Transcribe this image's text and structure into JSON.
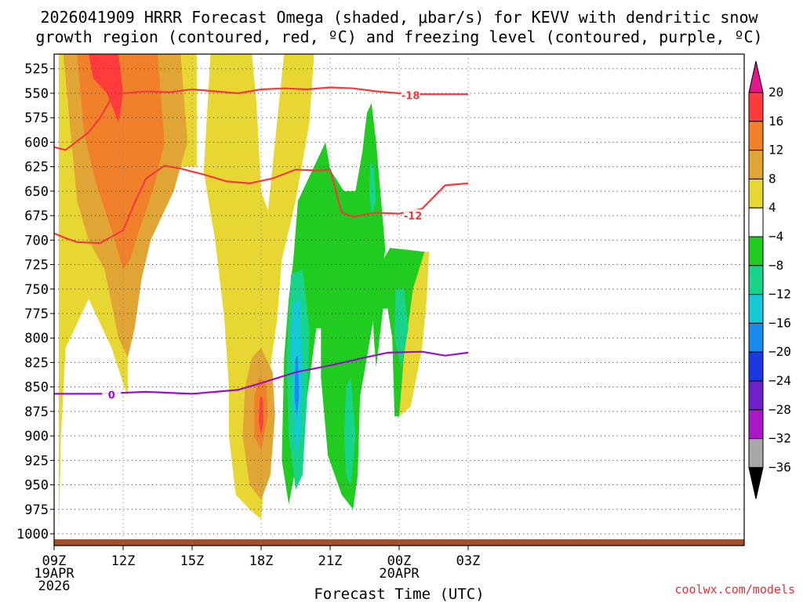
{
  "chart_data": {
    "type": "heatmap",
    "title_line1": "2026041909 HRRR Forecast Omega (shaded, μbar/s) for KEVV with dendritic snow",
    "title_line2": "growth region (contoured, red, ºC) and freezing level (contoured, purple, ºC)",
    "xlabel": "Forecast Time (UTC)",
    "credit": "coolwx.com/models",
    "x_range_hours": [
      0,
      30
    ],
    "y_range_mb": [
      1012,
      510
    ],
    "y_ticks": [
      525,
      550,
      575,
      600,
      625,
      650,
      675,
      700,
      725,
      750,
      775,
      800,
      825,
      850,
      875,
      900,
      925,
      950,
      975,
      1000
    ],
    "x_ticks": [
      {
        "hour": 0,
        "label": "09Z",
        "sub1": "19APR",
        "sub2": "2026"
      },
      {
        "hour": 3,
        "label": "12Z",
        "sub1": "",
        "sub2": ""
      },
      {
        "hour": 6,
        "label": "15Z",
        "sub1": "",
        "sub2": ""
      },
      {
        "hour": 9,
        "label": "18Z",
        "sub1": "",
        "sub2": ""
      },
      {
        "hour": 12,
        "label": "21Z",
        "sub1": "",
        "sub2": ""
      },
      {
        "hour": 15,
        "label": "00Z",
        "sub1": "20APR",
        "sub2": ""
      },
      {
        "hour": 18,
        "label": "03Z",
        "sub1": "",
        "sub2": ""
      }
    ],
    "colorbar": {
      "levels": [
        "20",
        "16",
        "12",
        "8",
        "4",
        "−4",
        "−8",
        "−12",
        "−16",
        "−20",
        "−24",
        "−28",
        "−32",
        "−36"
      ],
      "bands": [
        {
          "color": "#ff3b3b"
        },
        {
          "color": "#f0802a"
        },
        {
          "color": "#e0a534"
        },
        {
          "color": "#e8d733"
        },
        {
          "color": "#ffffff"
        },
        {
          "color": "#1fcc1f"
        },
        {
          "color": "#18d48a"
        },
        {
          "color": "#16c8d8"
        },
        {
          "color": "#1a8cf0"
        },
        {
          "color": "#1c38e0"
        },
        {
          "color": "#7020c8"
        },
        {
          "color": "#a818c8"
        },
        {
          "color": "#a8a8a8"
        }
      ],
      "top_arrow_color": "#e0188c",
      "bottom_arrow_color": "#000000"
    },
    "omega_regions": [
      {
        "name": "yellow-west",
        "value": 4,
        "color": "#e8d733",
        "pts": [
          [
            0.2,
            1000
          ],
          [
            0.2,
            510
          ],
          [
            6.2,
            510
          ],
          [
            6.2,
            625
          ],
          [
            3.5,
            625
          ],
          [
            3.2,
            700
          ],
          [
            3.2,
            860
          ],
          [
            2.5,
            810
          ],
          [
            1.5,
            760
          ],
          [
            0.5,
            810
          ],
          [
            0.3,
            900
          ]
        ]
      },
      {
        "name": "yellow-mid",
        "value": 4,
        "color": "#e8d733",
        "pts": [
          [
            6.8,
            510
          ],
          [
            8.6,
            510
          ],
          [
            8.8,
            560
          ],
          [
            9.0,
            650
          ],
          [
            9.3,
            670
          ],
          [
            9.6,
            600
          ],
          [
            10.0,
            510
          ],
          [
            11.3,
            510
          ],
          [
            11.1,
            580
          ],
          [
            10.5,
            660
          ],
          [
            9.9,
            720
          ],
          [
            9.7,
            780
          ],
          [
            9.4,
            830
          ],
          [
            9.2,
            930
          ],
          [
            9.0,
            985
          ],
          [
            8.5,
            975
          ],
          [
            7.9,
            960
          ],
          [
            7.6,
            900
          ],
          [
            7.6,
            850
          ],
          [
            7.4,
            780
          ],
          [
            7.0,
            700
          ],
          [
            6.5,
            630
          ]
        ]
      },
      {
        "name": "yellow-east",
        "value": 4,
        "color": "#e8d733",
        "pts": [
          [
            15.0,
            712
          ],
          [
            16.3,
            712
          ],
          [
            16.2,
            760
          ],
          [
            16.0,
            810
          ],
          [
            15.5,
            870
          ],
          [
            15.0,
            880
          ]
        ]
      },
      {
        "name": "orange-light",
        "value": 8,
        "color": "#e0a534",
        "pts": [
          [
            0.4,
            510
          ],
          [
            5.5,
            510
          ],
          [
            5.8,
            600
          ],
          [
            5.2,
            650
          ],
          [
            4.2,
            700
          ],
          [
            3.8,
            740
          ],
          [
            3.5,
            790
          ],
          [
            3.2,
            820
          ],
          [
            2.8,
            800
          ],
          [
            2.2,
            730
          ],
          [
            1.5,
            700
          ],
          [
            1.0,
            660
          ],
          [
            0.6,
            560
          ]
        ]
      },
      {
        "name": "orange-light-south",
        "value": 8,
        "color": "#e0a534",
        "pts": [
          [
            8.6,
            820
          ],
          [
            9.0,
            810
          ],
          [
            9.5,
            835
          ],
          [
            9.6,
            880
          ],
          [
            9.4,
            940
          ],
          [
            9.0,
            965
          ],
          [
            8.5,
            950
          ],
          [
            8.2,
            900
          ],
          [
            8.3,
            850
          ]
        ]
      },
      {
        "name": "orange",
        "value": 12,
        "color": "#f0802a",
        "pts": [
          [
            1.0,
            510
          ],
          [
            4.5,
            510
          ],
          [
            4.8,
            600
          ],
          [
            4.4,
            640
          ],
          [
            4.0,
            670
          ],
          [
            3.7,
            690
          ],
          [
            3.3,
            720
          ],
          [
            3.0,
            730
          ],
          [
            2.5,
            690
          ],
          [
            1.8,
            640
          ],
          [
            1.3,
            590
          ]
        ]
      },
      {
        "name": "orange-south",
        "value": 12,
        "color": "#f0802a",
        "pts": [
          [
            8.9,
            840
          ],
          [
            9.2,
            845
          ],
          [
            9.3,
            880
          ],
          [
            9.0,
            915
          ],
          [
            8.7,
            900
          ],
          [
            8.7,
            860
          ]
        ]
      },
      {
        "name": "red-core",
        "value": 16,
        "color": "#ff3b3b",
        "pts": [
          [
            1.5,
            510
          ],
          [
            2.8,
            510
          ],
          [
            3.0,
            550
          ],
          [
            2.8,
            580
          ],
          [
            2.3,
            550
          ],
          [
            1.7,
            535
          ]
        ]
      },
      {
        "name": "red-core-south",
        "value": 16,
        "color": "#ff3b3b",
        "pts": [
          [
            8.95,
            860
          ],
          [
            9.05,
            860
          ],
          [
            9.1,
            885
          ],
          [
            9.0,
            900
          ],
          [
            8.9,
            885
          ]
        ]
      },
      {
        "name": "green-west",
        "value": -4,
        "color": "#1fcc1f",
        "pts": [
          [
            10.4,
            720
          ],
          [
            10.6,
            660
          ],
          [
            11.2,
            630
          ],
          [
            11.8,
            600
          ],
          [
            12.0,
            628
          ],
          [
            12.6,
            650
          ],
          [
            13.1,
            650
          ],
          [
            13.4,
            610
          ],
          [
            13.6,
            570
          ],
          [
            13.8,
            560
          ],
          [
            14.0,
            600
          ],
          [
            14.4,
            710
          ],
          [
            14.1,
            750
          ],
          [
            13.6,
            820
          ],
          [
            13.3,
            860
          ],
          [
            13.2,
            940
          ],
          [
            13.0,
            975
          ],
          [
            12.5,
            960
          ],
          [
            11.9,
            920
          ],
          [
            11.6,
            840
          ],
          [
            11.6,
            790
          ],
          [
            11.4,
            790
          ],
          [
            10.8,
            895
          ],
          [
            10.2,
            970
          ],
          [
            9.9,
            925
          ],
          [
            10.0,
            820
          ],
          [
            10.2,
            760
          ]
        ]
      },
      {
        "name": "green-east",
        "value": -4,
        "color": "#1fcc1f",
        "pts": [
          [
            13.8,
            740
          ],
          [
            14.6,
            708
          ],
          [
            15.4,
            710
          ],
          [
            16.1,
            712
          ],
          [
            15.6,
            750
          ],
          [
            15.2,
            820
          ],
          [
            15.0,
            880
          ],
          [
            14.8,
            880
          ],
          [
            14.7,
            800
          ],
          [
            14.5,
            770
          ],
          [
            14.3,
            770
          ],
          [
            14.0,
            830
          ],
          [
            13.9,
            800
          ]
        ]
      },
      {
        "name": "teal-west",
        "value": -8,
        "color": "#18d48a",
        "pts": [
          [
            10.3,
            735
          ],
          [
            10.8,
            730
          ],
          [
            11.1,
            790
          ],
          [
            11.0,
            860
          ],
          [
            10.8,
            940
          ],
          [
            10.5,
            955
          ],
          [
            10.2,
            900
          ],
          [
            10.1,
            820
          ]
        ]
      },
      {
        "name": "teal-mid",
        "value": -8,
        "color": "#18d48a",
        "pts": [
          [
            12.7,
            850
          ],
          [
            12.9,
            840
          ],
          [
            13.1,
            900
          ],
          [
            12.9,
            950
          ],
          [
            12.7,
            940
          ],
          [
            12.6,
            900
          ]
        ]
      },
      {
        "name": "teal-ridge",
        "value": -8,
        "color": "#18d48a",
        "pts": [
          [
            13.75,
            620
          ],
          [
            13.9,
            625
          ],
          [
            14.0,
            660
          ],
          [
            13.8,
            675
          ],
          [
            13.7,
            650
          ]
        ]
      },
      {
        "name": "teal-east",
        "value": -8,
        "color": "#18d48a",
        "pts": [
          [
            14.85,
            750
          ],
          [
            15.2,
            750
          ],
          [
            15.4,
            790
          ],
          [
            15.1,
            830
          ],
          [
            14.8,
            800
          ]
        ]
      },
      {
        "name": "cyan-core",
        "value": -12,
        "color": "#16c8d8",
        "pts": [
          [
            10.4,
            765
          ],
          [
            10.7,
            760
          ],
          [
            10.8,
            840
          ],
          [
            10.7,
            900
          ],
          [
            10.5,
            920
          ],
          [
            10.4,
            870
          ],
          [
            10.3,
            800
          ]
        ]
      },
      {
        "name": "blue-core",
        "value": -16,
        "color": "#1a8cf0",
        "pts": [
          [
            10.5,
            820
          ],
          [
            10.6,
            818
          ],
          [
            10.65,
            860
          ],
          [
            10.55,
            880
          ],
          [
            10.45,
            860
          ]
        ]
      }
    ],
    "contours": [
      {
        "name": "dgz-upper",
        "label": "-18",
        "color": "#f03c3c",
        "pts": [
          [
            0,
            605
          ],
          [
            0.5,
            608
          ],
          [
            1.5,
            590
          ],
          [
            2.0,
            575
          ],
          [
            2.5,
            555
          ],
          [
            3.0,
            550
          ],
          [
            4.0,
            548
          ],
          [
            5.0,
            549
          ],
          [
            6.0,
            546
          ],
          [
            7.0,
            548
          ],
          [
            8.0,
            550
          ],
          [
            9.0,
            546
          ],
          [
            10.0,
            545
          ],
          [
            11.0,
            546
          ],
          [
            12.0,
            544
          ],
          [
            13.0,
            545
          ],
          [
            14.0,
            548
          ],
          [
            15.0,
            550
          ],
          [
            16.0,
            551
          ],
          [
            17.0,
            551
          ],
          [
            18.0,
            551
          ]
        ]
      },
      {
        "name": "dgz-lower",
        "label": "-12",
        "color": "#f03c3c",
        "pts": [
          [
            0,
            693
          ],
          [
            0.5,
            698
          ],
          [
            1.0,
            702
          ],
          [
            2.0,
            703
          ],
          [
            3.0,
            690
          ],
          [
            3.5,
            662
          ],
          [
            4.0,
            637
          ],
          [
            4.8,
            624
          ],
          [
            5.5,
            627
          ],
          [
            6.5,
            633
          ],
          [
            7.5,
            640
          ],
          [
            8.5,
            642
          ],
          [
            9.5,
            637
          ],
          [
            10.5,
            628
          ],
          [
            11.5,
            629
          ],
          [
            12.0,
            628
          ],
          [
            12.5,
            672
          ],
          [
            13.0,
            676
          ],
          [
            14.0,
            672
          ],
          [
            15.0,
            673
          ],
          [
            16.0,
            668
          ],
          [
            17.0,
            644
          ],
          [
            18.0,
            642
          ]
        ]
      },
      {
        "name": "freezing-level",
        "label": "0",
        "color": "#9a10c8",
        "pts": [
          [
            0,
            857
          ],
          [
            2.0,
            857
          ],
          [
            4.0,
            855
          ],
          [
            6.0,
            857
          ],
          [
            8.0,
            853
          ],
          [
            9.0,
            846
          ],
          [
            10.5,
            835
          ],
          [
            12.0,
            828
          ],
          [
            13.5,
            820
          ],
          [
            14.5,
            815
          ],
          [
            16.0,
            814
          ],
          [
            17.0,
            818
          ],
          [
            18.0,
            815
          ]
        ]
      }
    ],
    "label_positions": [
      {
        "contour": "dgz-upper",
        "label": "-18",
        "hour": 15.5,
        "mb": 552
      },
      {
        "contour": "dgz-lower",
        "label": "-12",
        "hour": 15.6,
        "mb": 675
      },
      {
        "contour": "freezing-level",
        "label": "0",
        "hour": 2.5,
        "mb": 858
      }
    ],
    "ground_color": "#a0522d"
  }
}
